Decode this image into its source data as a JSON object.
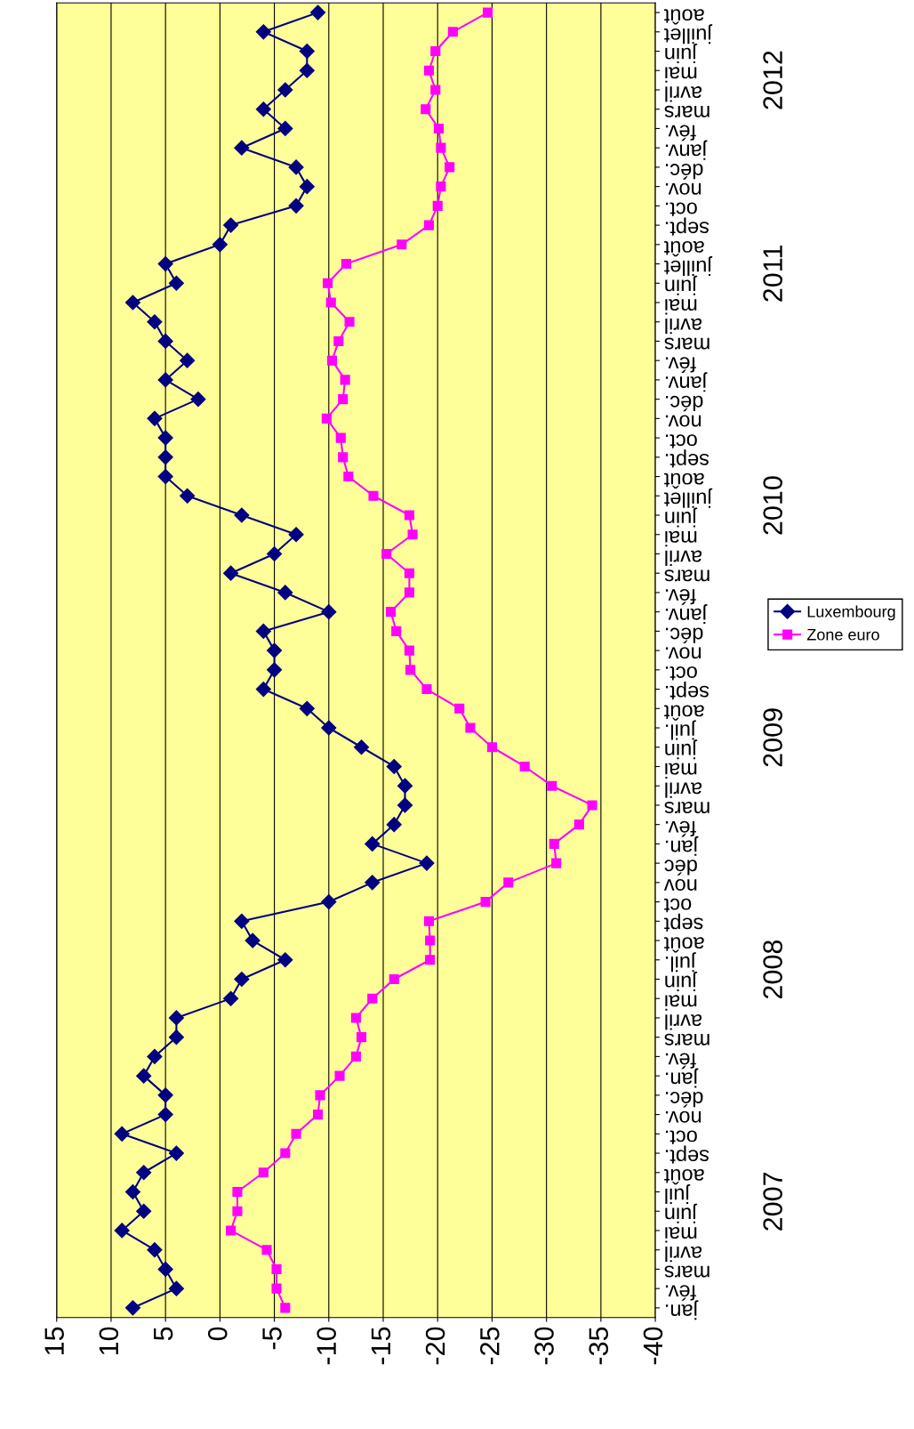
{
  "chart_data": {
    "type": "line",
    "orientation": "horizontal",
    "categories": [
      "août",
      "juillet",
      "juin",
      "mai",
      "avril",
      "mars",
      "fév.",
      "janv.",
      "déc.",
      "nov.",
      "oct.",
      "sept.",
      "août",
      "juillet",
      "juin",
      "mai",
      "avril",
      "mars",
      "fév.",
      "janv.",
      "déc.",
      "nov.",
      "oct.",
      "sept.",
      "août",
      "juillet",
      "juin",
      "mai",
      "avril",
      "mars",
      "fév.",
      "janv.",
      "déc.",
      "nov.",
      "oct.",
      "sept.",
      "août",
      "juil.",
      "juin",
      "mai",
      "avril",
      "mars",
      "fév.",
      "jan.",
      "déc",
      "nov",
      "oct",
      "sept",
      "août",
      "juil.",
      "juin",
      "mai",
      "avril",
      "mars",
      "fév.",
      "jan.",
      "déc.",
      "nov.",
      "oct.",
      "sept.",
      "août",
      "juil",
      "juin",
      "mai",
      "avril",
      "mars",
      "fév.",
      "jan."
    ],
    "series": [
      {
        "name": "Luxembourg",
        "color": "#000080",
        "marker": "diamond",
        "values": [
          -9,
          -4,
          -8,
          -8,
          -6,
          -4,
          -6,
          -2,
          -7,
          -8,
          -7,
          -1,
          0,
          5,
          4,
          8,
          6,
          5,
          3,
          5,
          2,
          6,
          5,
          5,
          5,
          3,
          -2,
          -7,
          -5,
          -1,
          -6,
          -10,
          -4,
          -5,
          -5,
          -4,
          -8,
          -10,
          -13,
          -16,
          -17,
          -17,
          -16,
          -14,
          -19,
          -14,
          -10,
          -2,
          -3,
          -6,
          -2,
          -1,
          4,
          4,
          6,
          7,
          5,
          5,
          9,
          4,
          7,
          8,
          7,
          9,
          6,
          5,
          4,
          8
        ]
      },
      {
        "name": "Zone euro",
        "color": "#ff00ff",
        "marker": "square",
        "values": [
          -24.6,
          -21.4,
          -19.8,
          -19.2,
          -19.8,
          -18.9,
          -20.1,
          -20.3,
          -21.1,
          -20.3,
          -20,
          -19.2,
          -16.7,
          -11.6,
          -9.9,
          -10.2,
          -11.9,
          -10.9,
          -10.3,
          -11.5,
          -11.3,
          -9.8,
          -11.1,
          -11.3,
          -11.8,
          -14.1,
          -17.4,
          -17.7,
          -15.3,
          -17.4,
          -17.4,
          -15.7,
          -16.2,
          -17.4,
          -17.5,
          -19,
          -22,
          -23,
          -25,
          -28,
          -30.5,
          -34.2,
          -33,
          -30.7,
          -30.9,
          -26.5,
          -24.4,
          -19.2,
          -19.3,
          -19.3,
          -16,
          -14,
          -12.5,
          -13,
          -12.5,
          -11,
          -9.2,
          -9,
          -7,
          -6,
          -4,
          -1.6,
          -1.6,
          -1,
          -4.3,
          -5.2,
          -5.2,
          -6
        ]
      }
    ],
    "annotations": [
      "2012",
      "2011",
      "2010",
      "2009",
      "2008",
      "2007"
    ],
    "xlim": [
      15,
      -40
    ],
    "xticks": [
      15,
      10,
      5,
      0,
      -5,
      -10,
      -15,
      -20,
      -25,
      -30,
      -35,
      -40
    ],
    "grid": "x",
    "legend": "right"
  }
}
